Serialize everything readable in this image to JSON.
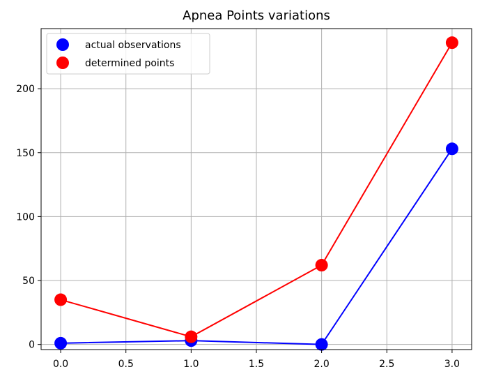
{
  "chart_data": {
    "type": "line",
    "title": "Apnea Points variations",
    "xlabel": "",
    "ylabel": "",
    "x": [
      0,
      1,
      2,
      3
    ],
    "xlim": [
      -0.15,
      3.15
    ],
    "ylim": [
      -4,
      247
    ],
    "xticks": [
      0.0,
      0.5,
      1.0,
      1.5,
      2.0,
      2.5,
      3.0
    ],
    "xtick_labels": [
      "0.0",
      "0.5",
      "1.0",
      "1.5",
      "2.0",
      "2.5",
      "3.0"
    ],
    "yticks": [
      0,
      50,
      100,
      150,
      200
    ],
    "ytick_labels": [
      "0",
      "50",
      "100",
      "150",
      "200"
    ],
    "grid": true,
    "legend_position": "top-left",
    "series": [
      {
        "name": "actual observations",
        "color": "#0000ff",
        "marker": "circle",
        "values": [
          1,
          3,
          0,
          153
        ]
      },
      {
        "name": "determined points",
        "color": "#ff0000",
        "marker": "circle",
        "values": [
          35,
          6,
          62,
          236
        ]
      }
    ]
  }
}
